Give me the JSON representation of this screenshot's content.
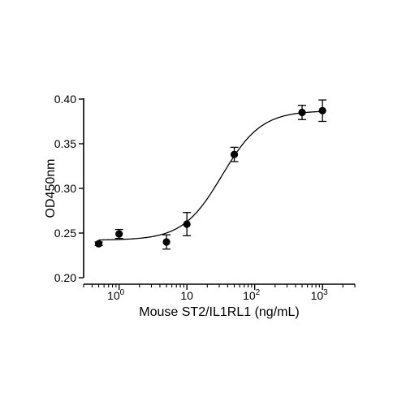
{
  "chart_data": {
    "type": "scatter",
    "xlabel": "Mouse ST2/IL1RL1 (ng/mL)",
    "ylabel": "OD450nm",
    "x_scale": "log10",
    "xlim": [
      0.3,
      3000
    ],
    "ylim": [
      0.2,
      0.4
    ],
    "x_ticks": [
      {
        "value": 1,
        "base": "10",
        "exp": "0"
      },
      {
        "value": 10,
        "label": "10"
      },
      {
        "value": 100,
        "base": "10",
        "exp": "2"
      },
      {
        "value": 1000,
        "base": "10",
        "exp": "3"
      }
    ],
    "y_ticks": [
      {
        "value": 0.2,
        "label": "0.20"
      },
      {
        "value": 0.25,
        "label": "0.25"
      },
      {
        "value": 0.3,
        "label": "0.30"
      },
      {
        "value": 0.35,
        "label": "0.35"
      },
      {
        "value": 0.4,
        "label": "0.40"
      }
    ],
    "points": [
      {
        "x": 0.5,
        "y": 0.238,
        "err": 0.002
      },
      {
        "x": 1,
        "y": 0.249,
        "err": 0.005
      },
      {
        "x": 5,
        "y": 0.24,
        "err": 0.008
      },
      {
        "x": 10,
        "y": 0.26,
        "err": 0.013
      },
      {
        "x": 50,
        "y": 0.338,
        "err": 0.008
      },
      {
        "x": 500,
        "y": 0.385,
        "err": 0.008
      },
      {
        "x": 1000,
        "y": 0.387,
        "err": 0.012
      }
    ],
    "fit": {
      "model": "4PL",
      "bottom": 0.242,
      "top": 0.387,
      "ec50": 33,
      "hill": 1.5
    },
    "grid": false,
    "legend": false
  }
}
